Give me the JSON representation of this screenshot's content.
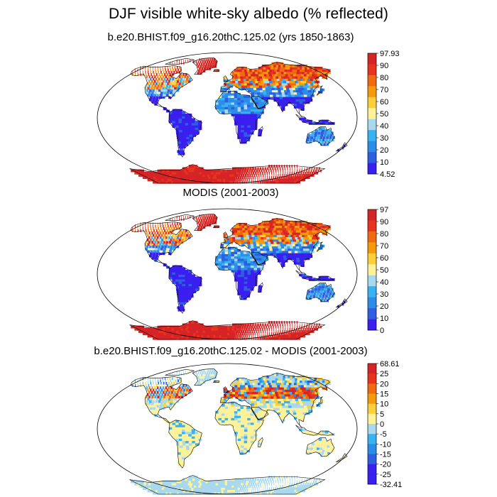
{
  "title": "DJF visible white-sky albedo (% reflected)",
  "panels": [
    {
      "title": "b.e20.BHIST.f09_g16.20thC.125.02 (yrs 1850-1863)",
      "colorbar": {
        "labels": [
          "97.93",
          "90",
          "80",
          "70",
          "60",
          "50",
          "40",
          "30",
          "20",
          "10",
          "4.52"
        ],
        "colors": [
          "#d62426",
          "#e8341f",
          "#f06a12",
          "#f59a0c",
          "#fbcf3a",
          "#fdf29a",
          "#a8d8ee",
          "#38b2f0",
          "#2c8de8",
          "#2d5fe0",
          "#3b1ff0"
        ]
      },
      "field": "model"
    },
    {
      "title": "MODIS (2001-2003)",
      "colorbar": {
        "labels": [
          "97",
          "90",
          "80",
          "70",
          "60",
          "50",
          "40",
          "30",
          "20",
          "10",
          "0"
        ],
        "colors": [
          "#d62426",
          "#e8341f",
          "#f06a12",
          "#f59a0c",
          "#fbcf3a",
          "#fdf29a",
          "#a8d8ee",
          "#38b2f0",
          "#2c8de8",
          "#2d5fe0",
          "#3b1ff0"
        ]
      },
      "field": "obs"
    },
    {
      "title": "b.e20.BHIST.f09_g16.20thC.125.02 - MODIS (2001-2003)",
      "colorbar": {
        "labels": [
          "68.61",
          "25",
          "20",
          "15",
          "10",
          "5",
          "0",
          "-5",
          "-10",
          "-15",
          "-20",
          "-25",
          "-32.41"
        ],
        "colors": [
          "#d62426",
          "#e8341f",
          "#f06a12",
          "#f59a0c",
          "#fbcf3a",
          "#fdf29a",
          "#a8d8ee",
          "#38b2f0",
          "#2c8de8",
          "#2d5fe0",
          "#3b1ff0",
          "#3b1ff0"
        ]
      },
      "field": "diff"
    }
  ]
}
